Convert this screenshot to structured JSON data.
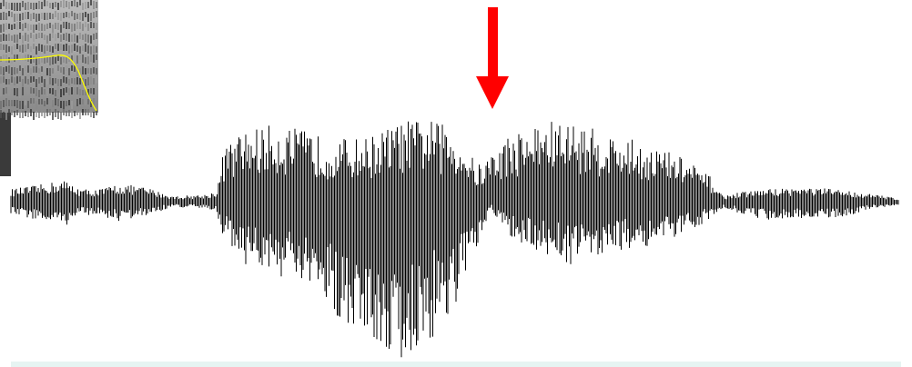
{
  "figure": {
    "description_visible_text": ""
  },
  "colors": {
    "background": "#ffffff",
    "waveform": "#000000",
    "arrow": "#ff0000",
    "pitch_track": "#ffff00",
    "spectrogram_dark": "#1a1a1a",
    "spectrogram_light": "#e8e8e8",
    "baseline": "#e6f4f2"
  },
  "icons": {
    "marker": "down-arrow-icon"
  },
  "waveform": {
    "segments": [
      {
        "kind": "fricative",
        "amplitude": 0.22
      },
      {
        "kind": "fricative",
        "amplitude": 0.18
      },
      {
        "kind": "gap",
        "amplitude": 0.06
      },
      {
        "kind": "vowel",
        "amplitude": 0.85
      },
      {
        "kind": "vowel",
        "amplitude": 1.0
      },
      {
        "kind": "vowel",
        "amplitude": 0.65
      },
      {
        "kind": "fricative",
        "amplitude": 0.18
      }
    ]
  }
}
